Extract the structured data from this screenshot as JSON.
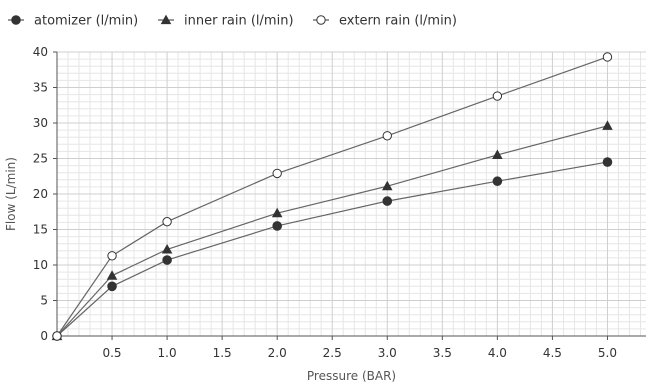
{
  "chart_data": {
    "type": "line",
    "title": "",
    "xlabel": "Pressure (BAR)",
    "ylabel": "Flow (L/min)",
    "xlim": [
      0,
      5.35
    ],
    "ylim": [
      0,
      40
    ],
    "x_ticks": [
      "0.5",
      "1.0",
      "1.5",
      "2.0",
      "2.5",
      "3.0",
      "3.5",
      "4.0",
      "4.5",
      "5.0"
    ],
    "y_ticks": [
      "0",
      "5",
      "10",
      "15",
      "20",
      "25",
      "30",
      "35",
      "40"
    ],
    "grid": true,
    "legend_position": "top-left",
    "series": [
      {
        "name": "atomizer (l/min)",
        "marker": "circle-filled",
        "color": "#333333",
        "x": [
          0,
          0.5,
          1.0,
          2.0,
          3.0,
          4.0,
          5.0
        ],
        "values": [
          0,
          7.0,
          10.7,
          15.5,
          19.0,
          21.8,
          24.5
        ]
      },
      {
        "name": "inner rain (l/min)",
        "marker": "triangle-filled",
        "color": "#333333",
        "x": [
          0,
          0.5,
          1.0,
          2.0,
          3.0,
          4.0,
          5.0
        ],
        "values": [
          0,
          8.5,
          12.2,
          17.3,
          21.1,
          25.5,
          29.6
        ]
      },
      {
        "name": "extern rain (l/min)",
        "marker": "circle-open",
        "color": "#333333",
        "x": [
          0,
          0.5,
          1.0,
          2.0,
          3.0,
          4.0,
          5.0
        ],
        "values": [
          0,
          11.3,
          16.1,
          22.9,
          28.2,
          33.8,
          39.3
        ]
      }
    ]
  }
}
